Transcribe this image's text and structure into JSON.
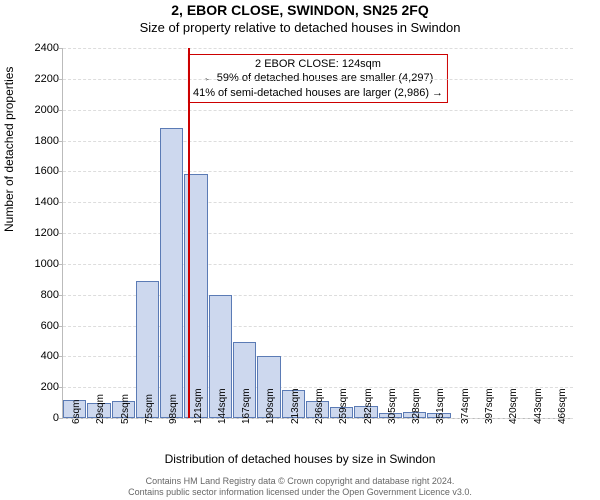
{
  "title_line1": "2, EBOR CLOSE, SWINDON, SN25 2FQ",
  "title_line2": "Size of property relative to detached houses in Swindon",
  "ylabel": "Number of detached properties",
  "xlabel": "Distribution of detached houses by size in Swindon",
  "footer_line1": "Contains HM Land Registry data © Crown copyright and database right 2024.",
  "footer_line2": "Contains public sector information licensed under the Open Government Licence v3.0.",
  "annotation": {
    "line1": "2 EBOR CLOSE: 124sqm",
    "line2": "← 59% of detached houses are smaller (4,297)",
    "line3": "41% of semi-detached houses are larger (2,986) →"
  },
  "chart": {
    "type": "histogram",
    "ylim": [
      0,
      2400
    ],
    "ytick_step": 200,
    "x_start": 6,
    "x_step": 23,
    "x_count": 21,
    "x_unit": "sqm",
    "values": [
      120,
      100,
      110,
      890,
      1880,
      1580,
      800,
      490,
      400,
      180,
      110,
      70,
      80,
      30,
      40,
      30,
      0,
      0,
      0,
      0,
      0
    ],
    "bar_fill": "#cdd8ee",
    "bar_stroke": "#5b7bb5",
    "grid_color": "#dddddd",
    "axis_color": "#bbbbbb",
    "vline_x": 124,
    "vline_color": "#cc0000",
    "background": "#ffffff",
    "title_fontsize": 14,
    "subtitle_fontsize": 13,
    "label_fontsize": 12,
    "tick_fontsize": 11
  }
}
